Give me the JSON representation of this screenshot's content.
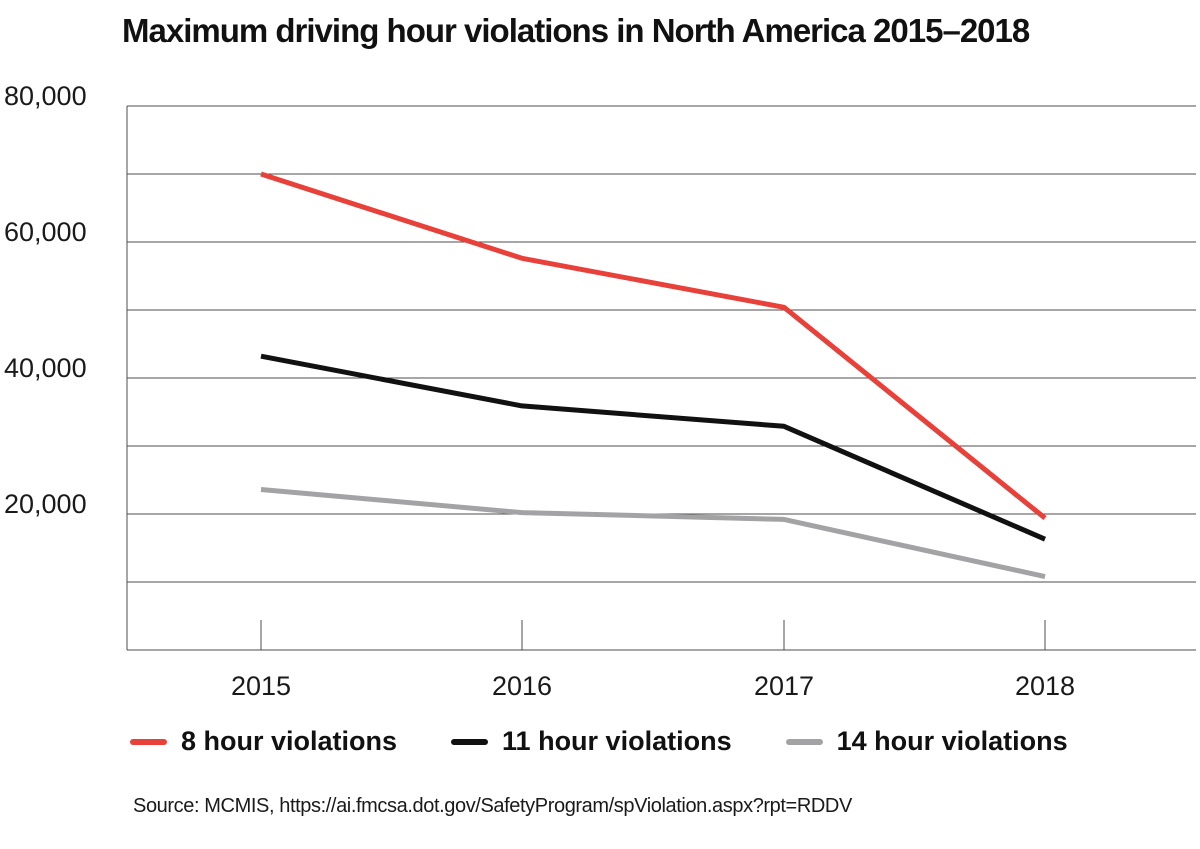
{
  "chart_data": {
    "type": "line",
    "title": "Maximum driving hour violations in North America 2015–2018",
    "categories": [
      "2015",
      "2016",
      "2017",
      "2018"
    ],
    "series": [
      {
        "name": "8 hour violations",
        "color": "#e8413a",
        "values": [
          70000,
          57600,
          50400,
          19400
        ]
      },
      {
        "name": "11 hour violations",
        "color": "#111111",
        "values": [
          43200,
          35900,
          32900,
          16300
        ]
      },
      {
        "name": "14 hour violations",
        "color": "#a3a3a6",
        "values": [
          23600,
          20200,
          19200,
          10800
        ]
      }
    ],
    "y_ticks": [
      "80,000",
      "60,000",
      "40,000",
      "20,000"
    ],
    "ylim": [
      0,
      80000
    ],
    "grid": true,
    "legend_position": "bottom",
    "source": "Source: MCMIS, https://ai.fmcsa.dot.gov/SafetyProgram/spViolation.aspx?rpt=RDDV"
  }
}
